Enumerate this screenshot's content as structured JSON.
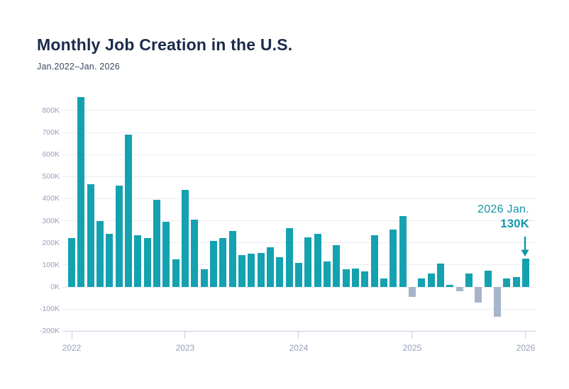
{
  "header": {
    "title": "Monthly Job Creation in the U.S.",
    "subtitle": "Jan.2022–Jan. 2026"
  },
  "annotation": {
    "line1": "2026 Jan.",
    "line2": "130K"
  },
  "colors": {
    "positive_bar": "#14A1B0",
    "negative_bar": "#A7B4C9",
    "title": "#1B2A4A",
    "subtitle": "#3C4763",
    "axis_label": "#98A1BB",
    "gridline": "#E9EBF3",
    "axis_line": "#C7CEDE",
    "annotation": "#1495A8",
    "background": "#FFFFFF"
  },
  "chart_data": {
    "type": "bar",
    "title": "Monthly Job Creation in the U.S.",
    "subtitle": "Jan.2022–Jan. 2026",
    "unit": "K (thousands of jobs)",
    "x_range": "Jan 2022 – Jan 2026, monthly",
    "x_tick_labels": [
      "2022",
      "2023",
      "2024",
      "2025",
      "2026"
    ],
    "y_ticks": [
      800,
      700,
      600,
      500,
      400,
      300,
      200,
      100,
      0,
      -100,
      -200
    ],
    "y_tick_labels": [
      "800K",
      "700K",
      "600K",
      "500K",
      "400K",
      "300K",
      "200K",
      "100K",
      "0K",
      "-100K",
      "-200K"
    ],
    "ylim": [
      -200,
      880
    ],
    "grid": true,
    "values": [
      220,
      860,
      465,
      300,
      240,
      460,
      690,
      235,
      220,
      395,
      295,
      125,
      440,
      305,
      80,
      210,
      220,
      255,
      145,
      150,
      155,
      180,
      135,
      265,
      110,
      225,
      240,
      115,
      190,
      80,
      85,
      70,
      235,
      40,
      260,
      320,
      -45,
      40,
      60,
      105,
      10,
      -20,
      60,
      -70,
      75,
      -135,
      40,
      45,
      130
    ],
    "highlight": {
      "index": 48,
      "month": "2026 Jan.",
      "value_label": "130K"
    }
  }
}
